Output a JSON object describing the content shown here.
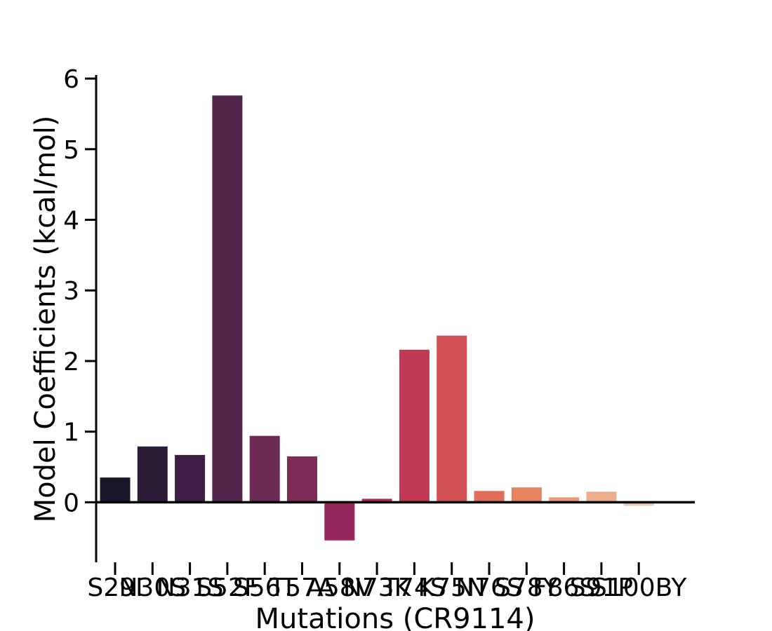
{
  "chart_data": {
    "type": "bar",
    "title": "",
    "xlabel": "Mutations (CR9114)",
    "ylabel": "Model Coefficients (kcal/mol)",
    "ylim": [
      -0.85,
      6.1
    ],
    "yticks": [
      0,
      1,
      2,
      3,
      4,
      5,
      6
    ],
    "grid": false,
    "legend": "none",
    "categories": [
      "S29I",
      "N30S",
      "N31S",
      "S52F",
      "S56T",
      "T57A",
      "A58V",
      "N73K",
      "T74S",
      "K75N",
      "N76S",
      "S78Y",
      "F86S",
      "S91P",
      "S100BY"
    ],
    "values": [
      0.35,
      0.79,
      0.67,
      5.76,
      0.94,
      0.65,
      -0.54,
      0.05,
      2.16,
      2.36,
      0.16,
      0.21,
      0.07,
      0.15,
      -0.05
    ],
    "colors": [
      "#1b1629",
      "#2d1c37",
      "#3d1f45",
      "#52264a",
      "#6b2a56",
      "#7f2b58",
      "#96285b",
      "#b02a5a",
      "#c13854",
      "#d24f53",
      "#e06c5a",
      "#e7835f",
      "#ec9a77",
      "#eeae8d",
      "#f0c8b1"
    ]
  }
}
